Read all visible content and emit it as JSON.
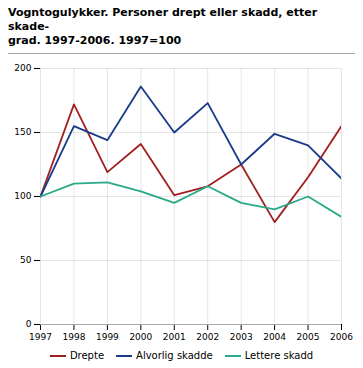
{
  "chart_data": {
    "type": "line",
    "title": "Vogntogulykker. Personer drept eller skadd, etter skade-\ngrad. 1997-2006. 1997=100",
    "x": [
      1997,
      1998,
      1999,
      2000,
      2001,
      2002,
      2003,
      2004,
      2005,
      2006
    ],
    "series": [
      {
        "name": "Drepte",
        "color": "#a02020",
        "values": [
          100,
          172,
          119,
          141,
          101,
          108,
          125,
          80,
          115,
          155
        ]
      },
      {
        "name": "Alvorlig skadde",
        "color": "#1a3a8a",
        "values": [
          100,
          155,
          144,
          186,
          150,
          173,
          125,
          149,
          140,
          114
        ]
      },
      {
        "name": "Lettere skadd",
        "color": "#2aaa88",
        "values": [
          100,
          110,
          111,
          104,
          95,
          108,
          95,
          90,
          100,
          84
        ]
      }
    ],
    "xlim": [
      1997,
      2006
    ],
    "xticks": [
      1997,
      1998,
      1999,
      2000,
      2001,
      2002,
      2003,
      2004,
      2005,
      2006
    ],
    "ylim": [
      0,
      200
    ],
    "yticks": [
      0,
      50,
      100,
      150,
      200
    ],
    "grid": true,
    "legend": "bottom"
  }
}
